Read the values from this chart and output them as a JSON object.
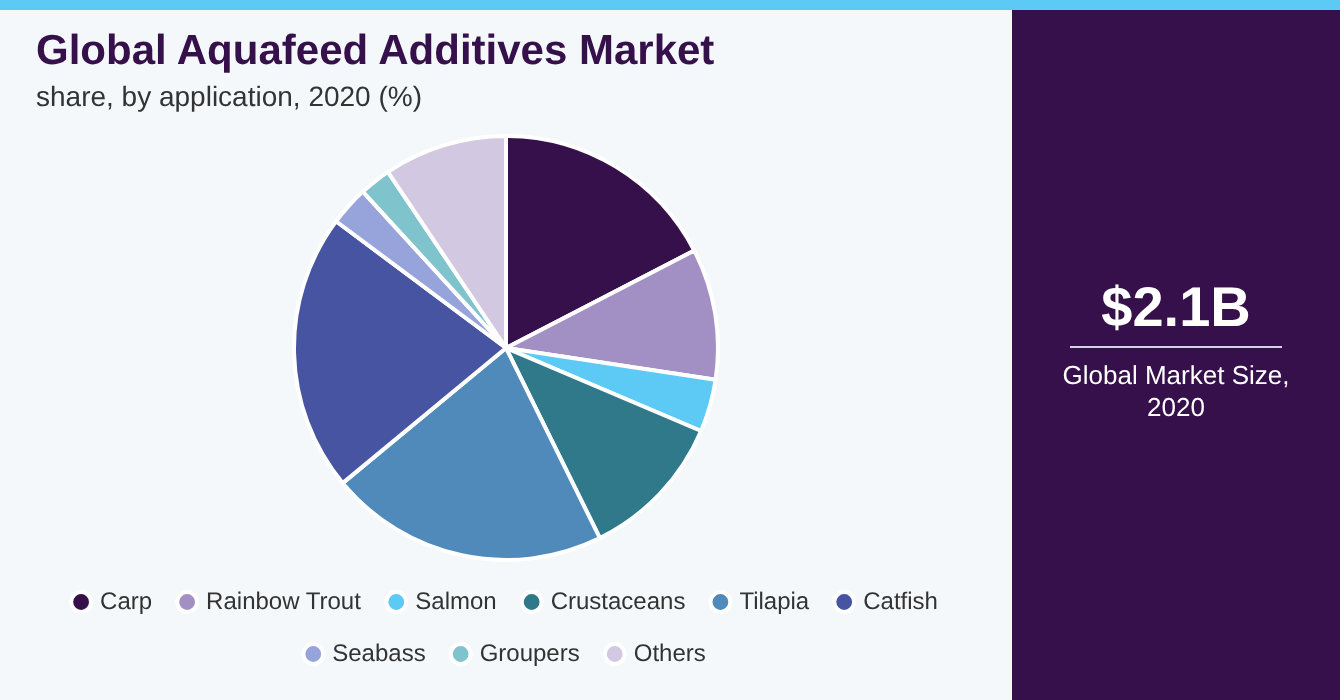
{
  "chart_data": {
    "type": "pie",
    "title": "Global Aquafeed Additives Market",
    "subtitle": "share, by application, 2020 (%)",
    "categories": [
      "Carp",
      "Rainbow Trout",
      "Salmon",
      "Crustaceans",
      "Tilapia",
      "Catfish",
      "Seabass",
      "Groupers",
      "Others"
    ],
    "values": [
      17.4,
      10,
      4,
      11.3,
      21.3,
      21.2,
      3,
      2.4,
      9.4
    ],
    "colors": [
      "#36104a",
      "#a28fc4",
      "#5ccaf5",
      "#2f798a",
      "#4f8abb",
      "#4654a1",
      "#97a3db",
      "#7fc4cc",
      "#d3c8e2"
    ],
    "legend": "bottom",
    "annotations": [
      "$2.1B",
      "Global Market Size, 2020"
    ]
  }
}
